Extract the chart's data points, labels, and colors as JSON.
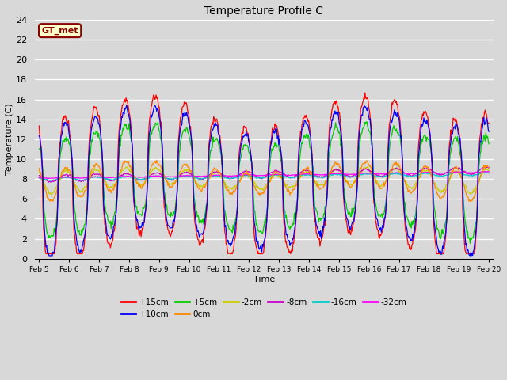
{
  "title": "Temperature Profile C",
  "xlabel": "Time",
  "ylabel": "Temperature (C)",
  "ylim": [
    0,
    24
  ],
  "xlim_days": [
    5,
    20
  ],
  "background_color": "#d8d8d8",
  "axes_bg": "#d8d8d8",
  "grid_color": "#ffffff",
  "annotation_text": "GT_met",
  "annotation_bg": "#ffffcc",
  "annotation_border": "#8B0000",
  "series_colors": {
    "+15cm": "#ff0000",
    "+10cm": "#0000ff",
    "+5cm": "#00cc00",
    "0cm": "#ff8800",
    "-2cm": "#cccc00",
    "-8cm": "#cc00cc",
    "-16cm": "#00cccc",
    "-32cm": "#ff00ff"
  }
}
